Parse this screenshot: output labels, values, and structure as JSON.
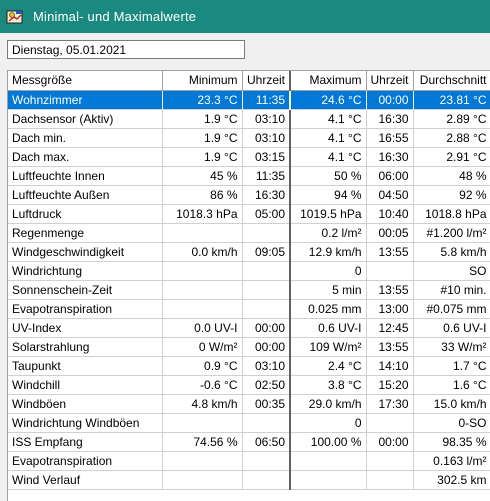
{
  "window": {
    "title": "Minimal- und Maximalwerte",
    "icon": "weather-station-icon"
  },
  "date_field": {
    "value": "Dienstag, 05.01.2021"
  },
  "table": {
    "headers": [
      "Messgröße",
      "Minimum",
      "Uhrzeit",
      "Maximum",
      "Uhrzeit",
      "Durchschnitt"
    ],
    "selected_row": 0,
    "rows": [
      [
        "Wohnzimmer",
        "23.3 °C",
        "11:35",
        "24.6 °C",
        "00:00",
        "23.81 °C"
      ],
      [
        "Dachsensor (Aktiv)",
        "1.9 °C",
        "03:10",
        "4.1 °C",
        "16:30",
        "2.89 °C"
      ],
      [
        "Dach min.",
        "1.9 °C",
        "03:10",
        "4.1 °C",
        "16:55",
        "2.88 °C"
      ],
      [
        "Dach max.",
        "1.9 °C",
        "03:15",
        "4.1 °C",
        "16:30",
        "2.91 °C"
      ],
      [
        "Luftfeuchte Innen",
        "45 %",
        "11:35",
        "50 %",
        "06:00",
        "48 %"
      ],
      [
        "Luftfeuchte Außen",
        "86 %",
        "16:30",
        "94 %",
        "04:50",
        "92 %"
      ],
      [
        "Luftdruck",
        "1018.3 hPa",
        "05:00",
        "1019.5 hPa",
        "10:40",
        "1018.8 hPa"
      ],
      [
        "Regenmenge",
        "",
        "",
        "0.2 l/m²",
        "00:05",
        "#1.200 l/m²"
      ],
      [
        "Windgeschwindigkeit",
        "0.0 km/h",
        "09:05",
        "12.9 km/h",
        "13:55",
        "5.8 km/h"
      ],
      [
        "Windrichtung",
        "",
        "",
        "0",
        "",
        "SO"
      ],
      [
        "Sonnenschein-Zeit",
        "",
        "",
        "5 min",
        "13:55",
        "#10 min."
      ],
      [
        "Evapotranspiration",
        "",
        "",
        "0.025 mm",
        "13:00",
        "#0.075 mm"
      ],
      [
        "UV-Index",
        "0.0 UV-I",
        "00:00",
        "0.6 UV-I",
        "12:45",
        "0.6 UV-I"
      ],
      [
        "Solarstrahlung",
        "0 W/m²",
        "00:00",
        "109 W/m²",
        "13:55",
        "33 W/m²"
      ],
      [
        "Taupunkt",
        "0.9 °C",
        "03:10",
        "2.4 °C",
        "14:10",
        "1.7 °C"
      ],
      [
        "Windchill",
        "-0.6 °C",
        "02:50",
        "3.8 °C",
        "15:20",
        "1.6 °C"
      ],
      [
        "Windböen",
        "4.8 km/h",
        "00:35",
        "29.0 km/h",
        "17:30",
        "15.0 km/h"
      ],
      [
        "Windrichtung Windböen",
        "",
        "",
        "0",
        "",
        "0-SO"
      ],
      [
        "ISS Empfang",
        "74.56 %",
        "06:50",
        "100.00 %",
        "00:00",
        "98.35 %"
      ],
      [
        "Evapotranspiration",
        "",
        "",
        "",
        "",
        "0.163 l/m²"
      ],
      [
        "Wind Verlauf",
        "",
        "",
        "",
        "",
        "302.5 km"
      ]
    ]
  }
}
